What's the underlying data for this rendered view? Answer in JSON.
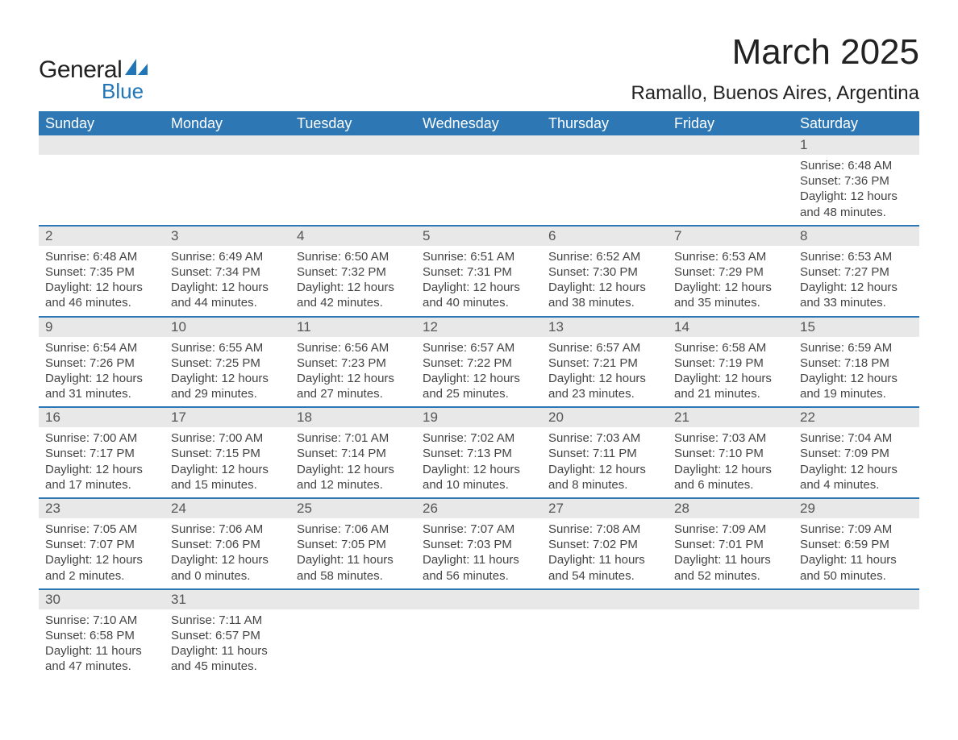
{
  "logo": {
    "text1": "General",
    "text2": "Blue",
    "shape_color": "#2176b8"
  },
  "title": "March 2025",
  "location": "Ramallo, Buenos Aires, Argentina",
  "colors": {
    "header_bg": "#2c77b4",
    "header_text": "#ffffff",
    "daynum_bg": "#e8e8e8",
    "border": "#2c77b4",
    "body_text": "#444444"
  },
  "weekdays": [
    "Sunday",
    "Monday",
    "Tuesday",
    "Wednesday",
    "Thursday",
    "Friday",
    "Saturday"
  ],
  "first_weekday_index": 6,
  "days": [
    {
      "n": 1,
      "sunrise": "6:48 AM",
      "sunset": "7:36 PM",
      "daylight": "12 hours and 48 minutes."
    },
    {
      "n": 2,
      "sunrise": "6:48 AM",
      "sunset": "7:35 PM",
      "daylight": "12 hours and 46 minutes."
    },
    {
      "n": 3,
      "sunrise": "6:49 AM",
      "sunset": "7:34 PM",
      "daylight": "12 hours and 44 minutes."
    },
    {
      "n": 4,
      "sunrise": "6:50 AM",
      "sunset": "7:32 PM",
      "daylight": "12 hours and 42 minutes."
    },
    {
      "n": 5,
      "sunrise": "6:51 AM",
      "sunset": "7:31 PM",
      "daylight": "12 hours and 40 minutes."
    },
    {
      "n": 6,
      "sunrise": "6:52 AM",
      "sunset": "7:30 PM",
      "daylight": "12 hours and 38 minutes."
    },
    {
      "n": 7,
      "sunrise": "6:53 AM",
      "sunset": "7:29 PM",
      "daylight": "12 hours and 35 minutes."
    },
    {
      "n": 8,
      "sunrise": "6:53 AM",
      "sunset": "7:27 PM",
      "daylight": "12 hours and 33 minutes."
    },
    {
      "n": 9,
      "sunrise": "6:54 AM",
      "sunset": "7:26 PM",
      "daylight": "12 hours and 31 minutes."
    },
    {
      "n": 10,
      "sunrise": "6:55 AM",
      "sunset": "7:25 PM",
      "daylight": "12 hours and 29 minutes."
    },
    {
      "n": 11,
      "sunrise": "6:56 AM",
      "sunset": "7:23 PM",
      "daylight": "12 hours and 27 minutes."
    },
    {
      "n": 12,
      "sunrise": "6:57 AM",
      "sunset": "7:22 PM",
      "daylight": "12 hours and 25 minutes."
    },
    {
      "n": 13,
      "sunrise": "6:57 AM",
      "sunset": "7:21 PM",
      "daylight": "12 hours and 23 minutes."
    },
    {
      "n": 14,
      "sunrise": "6:58 AM",
      "sunset": "7:19 PM",
      "daylight": "12 hours and 21 minutes."
    },
    {
      "n": 15,
      "sunrise": "6:59 AM",
      "sunset": "7:18 PM",
      "daylight": "12 hours and 19 minutes."
    },
    {
      "n": 16,
      "sunrise": "7:00 AM",
      "sunset": "7:17 PM",
      "daylight": "12 hours and 17 minutes."
    },
    {
      "n": 17,
      "sunrise": "7:00 AM",
      "sunset": "7:15 PM",
      "daylight": "12 hours and 15 minutes."
    },
    {
      "n": 18,
      "sunrise": "7:01 AM",
      "sunset": "7:14 PM",
      "daylight": "12 hours and 12 minutes."
    },
    {
      "n": 19,
      "sunrise": "7:02 AM",
      "sunset": "7:13 PM",
      "daylight": "12 hours and 10 minutes."
    },
    {
      "n": 20,
      "sunrise": "7:03 AM",
      "sunset": "7:11 PM",
      "daylight": "12 hours and 8 minutes."
    },
    {
      "n": 21,
      "sunrise": "7:03 AM",
      "sunset": "7:10 PM",
      "daylight": "12 hours and 6 minutes."
    },
    {
      "n": 22,
      "sunrise": "7:04 AM",
      "sunset": "7:09 PM",
      "daylight": "12 hours and 4 minutes."
    },
    {
      "n": 23,
      "sunrise": "7:05 AM",
      "sunset": "7:07 PM",
      "daylight": "12 hours and 2 minutes."
    },
    {
      "n": 24,
      "sunrise": "7:06 AM",
      "sunset": "7:06 PM",
      "daylight": "12 hours and 0 minutes."
    },
    {
      "n": 25,
      "sunrise": "7:06 AM",
      "sunset": "7:05 PM",
      "daylight": "11 hours and 58 minutes."
    },
    {
      "n": 26,
      "sunrise": "7:07 AM",
      "sunset": "7:03 PM",
      "daylight": "11 hours and 56 minutes."
    },
    {
      "n": 27,
      "sunrise": "7:08 AM",
      "sunset": "7:02 PM",
      "daylight": "11 hours and 54 minutes."
    },
    {
      "n": 28,
      "sunrise": "7:09 AM",
      "sunset": "7:01 PM",
      "daylight": "11 hours and 52 minutes."
    },
    {
      "n": 29,
      "sunrise": "7:09 AM",
      "sunset": "6:59 PM",
      "daylight": "11 hours and 50 minutes."
    },
    {
      "n": 30,
      "sunrise": "7:10 AM",
      "sunset": "6:58 PM",
      "daylight": "11 hours and 47 minutes."
    },
    {
      "n": 31,
      "sunrise": "7:11 AM",
      "sunset": "6:57 PM",
      "daylight": "11 hours and 45 minutes."
    }
  ],
  "labels": {
    "sunrise": "Sunrise:",
    "sunset": "Sunset:",
    "daylight": "Daylight:"
  }
}
